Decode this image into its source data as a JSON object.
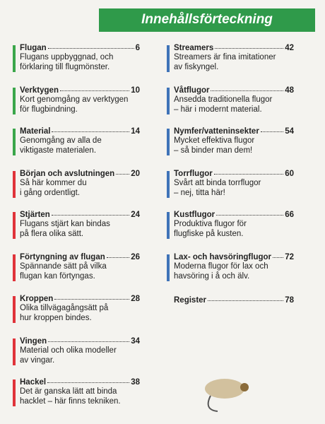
{
  "header": {
    "title": "Innehållsförteckning"
  },
  "left": [
    {
      "title": "Flugan",
      "page": "6",
      "color": "#3aa64a",
      "description": [
        "Flugans uppbyggnad, och",
        "förklaring till flugmönster."
      ]
    },
    {
      "title": "Verktygen",
      "page": "10",
      "color": "#3aa64a",
      "description": [
        "Kort genomgång av verktygen",
        "för flugbindning."
      ]
    },
    {
      "title": "Material",
      "page": "14",
      "color": "#3aa64a",
      "description": [
        "Genomgång av alla de",
        "viktigaste materialen."
      ]
    },
    {
      "title": "Början och avslutningen",
      "page": "20",
      "color": "#e0333a",
      "description": [
        "Så här kommer du",
        "i gång ordentligt."
      ]
    },
    {
      "title": "Stjärten",
      "page": "24",
      "color": "#e0333a",
      "description": [
        "Flugans stjärt kan bindas",
        "på flera olika sätt."
      ]
    },
    {
      "title": "Förtyngning av flugan",
      "page": "26",
      "color": "#e0333a",
      "description": [
        "Spännande sätt på vilka",
        "flugan kan förtyngas."
      ]
    },
    {
      "title": "Kroppen",
      "page": "28",
      "color": "#e0333a",
      "description": [
        "Olika tillvägagångsätt på",
        "hur kroppen bindes."
      ]
    },
    {
      "title": "Vingen",
      "page": "34",
      "color": "#e0333a",
      "description": [
        "Material och olika modeller",
        "av vingar."
      ]
    },
    {
      "title": "Hackel",
      "page": "38",
      "color": "#e0333a",
      "description": [
        "Det är ganska lätt att binda",
        "hacklet – här finns tekniken."
      ]
    }
  ],
  "right": [
    {
      "title": "Streamers",
      "page": "42",
      "color": "#3f73b8",
      "description": [
        "Streamers är fina imitationer",
        "av fiskyngel."
      ]
    },
    {
      "title": "Våtflugor",
      "page": "48",
      "color": "#3f73b8",
      "description": [
        "Ansedda traditionella flugor",
        "– här i modernt material."
      ]
    },
    {
      "title": "Nymfer/vatteninsekter",
      "page": "54",
      "color": "#3f73b8",
      "description": [
        "Mycket effektiva flugor",
        "– så binder man dem!"
      ]
    },
    {
      "title": "Torrflugor",
      "page": "60",
      "color": "#3f73b8",
      "description": [
        "Svårt att binda torrflugor",
        "– nej, titta här!"
      ]
    },
    {
      "title": "Kustflugor",
      "page": "66",
      "color": "#3f73b8",
      "description": [
        "Produktiva flugor för",
        "flugfiske på kusten."
      ]
    },
    {
      "title": "Lax- och havsöringflugor",
      "page": "72",
      "color": "#3f73b8",
      "description": [
        "Moderna flugor för lax och",
        "havsöring i å och älv."
      ]
    },
    {
      "title": "Register",
      "page": "78"
    }
  ]
}
